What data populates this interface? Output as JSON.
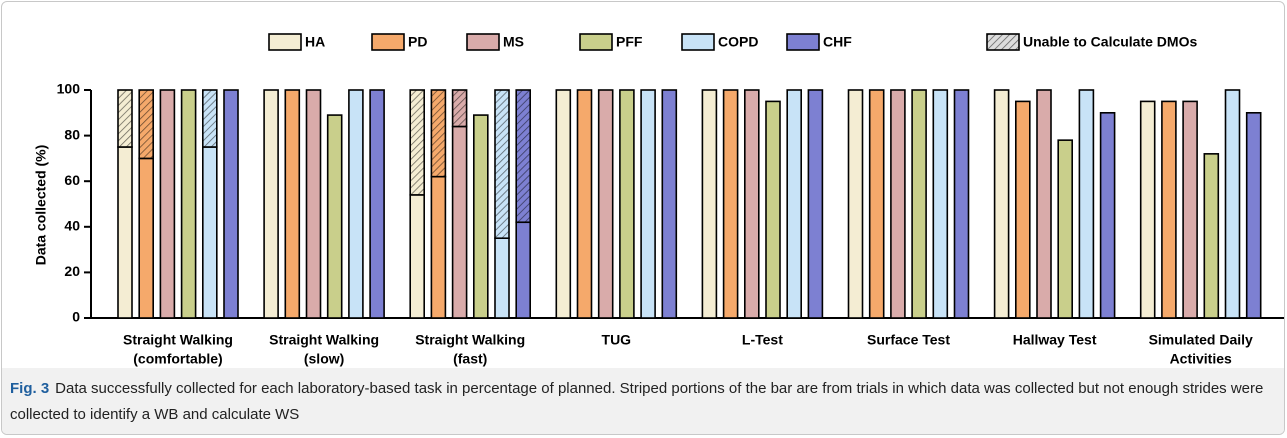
{
  "chart_data": {
    "type": "bar",
    "ylabel": "Data collected (%)",
    "categories": [
      [
        "Straight Walking",
        "(comfortable)"
      ],
      [
        "Straight Walking",
        "(slow)"
      ],
      [
        "Straight Walking",
        "(fast)"
      ],
      [
        "TUG"
      ],
      [
        "L-Test"
      ],
      [
        "Surface Test"
      ],
      [
        "Hallway Test"
      ],
      [
        "Simulated Daily",
        "Activities"
      ]
    ],
    "series": [
      {
        "name": "HA",
        "color": "#f4edd3",
        "values": [
          75,
          100,
          54,
          100,
          100,
          100,
          100,
          95
        ],
        "unable": [
          25,
          0,
          46,
          0,
          0,
          0,
          0,
          0
        ]
      },
      {
        "name": "PD",
        "color": "#f5a96b",
        "values": [
          70,
          100,
          62,
          100,
          100,
          100,
          95,
          95
        ],
        "unable": [
          30,
          0,
          38,
          0,
          0,
          0,
          0,
          0
        ]
      },
      {
        "name": "MS",
        "color": "#d9abaa",
        "values": [
          100,
          100,
          84,
          100,
          100,
          100,
          100,
          95
        ],
        "unable": [
          0,
          0,
          16,
          0,
          0,
          0,
          0,
          0
        ]
      },
      {
        "name": "PFF",
        "color": "#c9cf8b",
        "values": [
          100,
          89,
          89,
          100,
          95,
          100,
          78,
          72
        ],
        "unable": [
          0,
          0,
          0,
          0,
          0,
          0,
          0,
          0
        ]
      },
      {
        "name": "COPD",
        "color": "#c8e3f7",
        "values": [
          75,
          100,
          35,
          100,
          100,
          100,
          100,
          100
        ],
        "unable": [
          25,
          0,
          65,
          0,
          0,
          0,
          0,
          0
        ]
      },
      {
        "name": "CHF",
        "color": "#7d80d2",
        "values": [
          100,
          100,
          42,
          100,
          100,
          100,
          90,
          90
        ],
        "unable": [
          0,
          0,
          58,
          0,
          0,
          0,
          0,
          0
        ]
      }
    ],
    "unable_label": "Unable to Calculate DMOs",
    "ylim": [
      0,
      100
    ],
    "yticks": [
      0,
      20,
      40,
      60,
      80,
      100
    ],
    "grid": false
  },
  "caption": {
    "label": "Fig. 3",
    "text": "Data successfully collected for each laboratory-based task in percentage of planned. Striped portions of the bar are from trials in which data was collected but not enough strides were collected to identify a WB and calculate WS"
  }
}
